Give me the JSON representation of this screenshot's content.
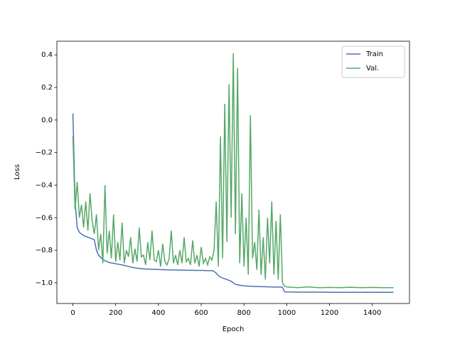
{
  "chart_data": {
    "type": "line",
    "x_label": "Epoch",
    "y_label": "Loss",
    "x": [
      0,
      10,
      20,
      30,
      40,
      50,
      60,
      70,
      80,
      90,
      100,
      110,
      120,
      130,
      140,
      150,
      160,
      170,
      180,
      190,
      200,
      210,
      220,
      230,
      240,
      250,
      260,
      270,
      280,
      290,
      300,
      310,
      320,
      330,
      340,
      350,
      360,
      370,
      380,
      390,
      400,
      410,
      420,
      430,
      440,
      450,
      460,
      470,
      480,
      490,
      500,
      510,
      520,
      530,
      540,
      550,
      560,
      570,
      580,
      590,
      600,
      610,
      620,
      630,
      640,
      650,
      660,
      670,
      680,
      690,
      700,
      710,
      720,
      730,
      740,
      750,
      760,
      770,
      780,
      790,
      800,
      810,
      820,
      830,
      840,
      850,
      860,
      870,
      880,
      890,
      900,
      910,
      920,
      930,
      940,
      950,
      960,
      970,
      980,
      990,
      1000,
      1050,
      1100,
      1150,
      1200,
      1250,
      1300,
      1350,
      1400,
      1450,
      1499
    ],
    "series": [
      {
        "name": "Train",
        "color": "#4c72b0",
        "values": [
          0.04,
          -0.5,
          -0.66,
          -0.69,
          -0.7,
          -0.71,
          -0.715,
          -0.72,
          -0.725,
          -0.73,
          -0.735,
          -0.8,
          -0.83,
          -0.845,
          -0.855,
          -0.865,
          -0.87,
          -0.875,
          -0.878,
          -0.88,
          -0.883,
          -0.885,
          -0.888,
          -0.89,
          -0.893,
          -0.896,
          -0.9,
          -0.903,
          -0.906,
          -0.908,
          -0.91,
          -0.912,
          -0.913,
          -0.914,
          -0.915,
          -0.916,
          -0.916,
          -0.917,
          -0.917,
          -0.918,
          -0.918,
          -0.919,
          -0.919,
          -0.92,
          -0.92,
          -0.92,
          -0.921,
          -0.921,
          -0.921,
          -0.922,
          -0.922,
          -0.922,
          -0.922,
          -0.923,
          -0.923,
          -0.923,
          -0.923,
          -0.924,
          -0.924,
          -0.924,
          -0.924,
          -0.924,
          -0.925,
          -0.925,
          -0.925,
          -0.925,
          -0.93,
          -0.94,
          -0.955,
          -0.965,
          -0.97,
          -0.975,
          -0.98,
          -0.985,
          -0.99,
          -1.0,
          -1.01,
          -1.012,
          -1.015,
          -1.017,
          -1.018,
          -1.02,
          -1.02,
          -1.021,
          -1.022,
          -1.022,
          -1.023,
          -1.023,
          -1.024,
          -1.024,
          -1.024,
          -1.025,
          -1.025,
          -1.025,
          -1.026,
          -1.026,
          -1.026,
          -1.026,
          -1.027,
          -1.055,
          -1.056,
          -1.057,
          -1.057,
          -1.057,
          -1.058,
          -1.058,
          -1.058,
          -1.058,
          -1.058,
          -1.058,
          -1.058
        ]
      },
      {
        "name": "Val.",
        "color": "#55a868",
        "values": [
          -0.1,
          -0.55,
          -0.38,
          -0.6,
          -0.52,
          -0.66,
          -0.5,
          -0.68,
          -0.45,
          -0.62,
          -0.7,
          -0.58,
          -0.8,
          -0.7,
          -0.88,
          -0.4,
          -0.82,
          -0.68,
          -0.85,
          -0.58,
          -0.87,
          -0.75,
          -0.86,
          -0.63,
          -0.88,
          -0.8,
          -0.84,
          -0.72,
          -0.88,
          -0.79,
          -0.87,
          -0.66,
          -0.84,
          -0.83,
          -0.89,
          -0.75,
          -0.86,
          -0.68,
          -0.86,
          -0.87,
          -0.8,
          -0.9,
          -0.76,
          -0.87,
          -0.89,
          -0.85,
          -0.68,
          -0.88,
          -0.83,
          -0.89,
          -0.8,
          -0.88,
          -0.72,
          -0.87,
          -0.85,
          -0.89,
          -0.74,
          -0.88,
          -0.83,
          -0.9,
          -0.78,
          -0.88,
          -0.85,
          -0.89,
          -0.84,
          -0.86,
          -0.8,
          -0.5,
          -0.9,
          -0.1,
          -0.85,
          0.1,
          -0.75,
          0.22,
          -0.6,
          0.41,
          -0.7,
          0.32,
          -0.88,
          -0.45,
          -0.9,
          -0.6,
          -0.95,
          0.03,
          -0.85,
          -0.75,
          -0.92,
          -0.55,
          -0.95,
          -0.72,
          -0.98,
          -0.6,
          -0.88,
          -0.5,
          -0.95,
          -0.62,
          -0.98,
          -0.58,
          -1.0,
          -1.02,
          -1.025,
          -1.03,
          -1.025,
          -1.03,
          -1.028,
          -1.03,
          -1.027,
          -1.03,
          -1.028,
          -1.03,
          -1.03
        ]
      }
    ],
    "xlim": [
      -75,
      1574
    ],
    "ylim": [
      -1.127,
      0.484
    ],
    "xticks": [
      0,
      200,
      400,
      600,
      800,
      1000,
      1200,
      1400
    ],
    "yticks": [
      {
        "value": -1.0,
        "label": "−1.0"
      },
      {
        "value": -0.8,
        "label": "−0.8"
      },
      {
        "value": -0.6,
        "label": "−0.6"
      },
      {
        "value": -0.4,
        "label": "−0.4"
      },
      {
        "value": -0.2,
        "label": "−0.2"
      },
      {
        "value": 0,
        "label": "0.0"
      },
      0.2,
      0.4
    ],
    "legend": "upper right",
    "grid": false
  }
}
